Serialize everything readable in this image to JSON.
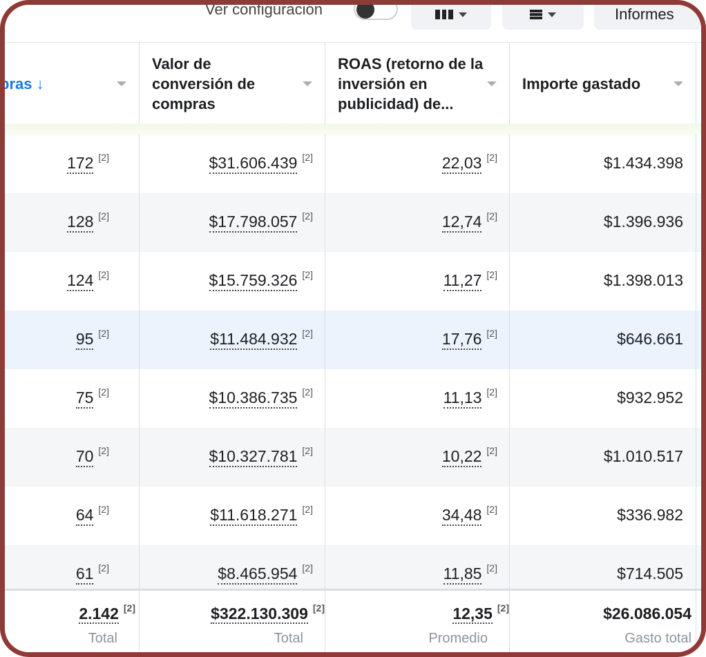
{
  "toolbar": {
    "view_settings_label": "Ver configuración",
    "reports_label": "Informes"
  },
  "columns": [
    {
      "id": "purchases",
      "label": "pras ↓"
    },
    {
      "id": "conv_value",
      "label": "Valor de conversión de compras"
    },
    {
      "id": "roas",
      "label": "ROAS (retorno de la inversión en publicidad) de..."
    },
    {
      "id": "spent",
      "label": "Importe gastado"
    }
  ],
  "rows": [
    {
      "purchases": "172",
      "conv_value": "$31.606.439",
      "roas": "22,03",
      "spent": "$1.434.398"
    },
    {
      "purchases": "128",
      "conv_value": "$17.798.057",
      "roas": "12,74",
      "spent": "$1.396.936"
    },
    {
      "purchases": "124",
      "conv_value": "$15.759.326",
      "roas": "11,27",
      "spent": "$1.398.013"
    },
    {
      "purchases": "95",
      "conv_value": "$11.484.932",
      "roas": "17,76",
      "spent": "$646.661"
    },
    {
      "purchases": "75",
      "conv_value": "$10.386.735",
      "roas": "11,13",
      "spent": "$932.952"
    },
    {
      "purchases": "70",
      "conv_value": "$10.327.781",
      "roas": "10,22",
      "spent": "$1.010.517"
    },
    {
      "purchases": "64",
      "conv_value": "$11.618.271",
      "roas": "34,48",
      "spent": "$336.982"
    },
    {
      "purchases": "61",
      "conv_value": "$8.465.954",
      "roas": "11,85",
      "spent": "$714.505"
    }
  ],
  "footnote_marker": "[2]",
  "totals": {
    "purchases": {
      "value": "2.142",
      "label": "Total"
    },
    "conv_value": {
      "value": "$322.130.309",
      "label": "Total"
    },
    "roas": {
      "value": "12,35",
      "label": "Promedio"
    },
    "spent": {
      "value": "$26.086.054",
      "label": "Gasto total"
    }
  },
  "colors": {
    "frame": "#8f3a36",
    "link_blue": "#1877f2",
    "highlight_row": "#ebf3fd",
    "alt_row": "#f5f6f7"
  }
}
